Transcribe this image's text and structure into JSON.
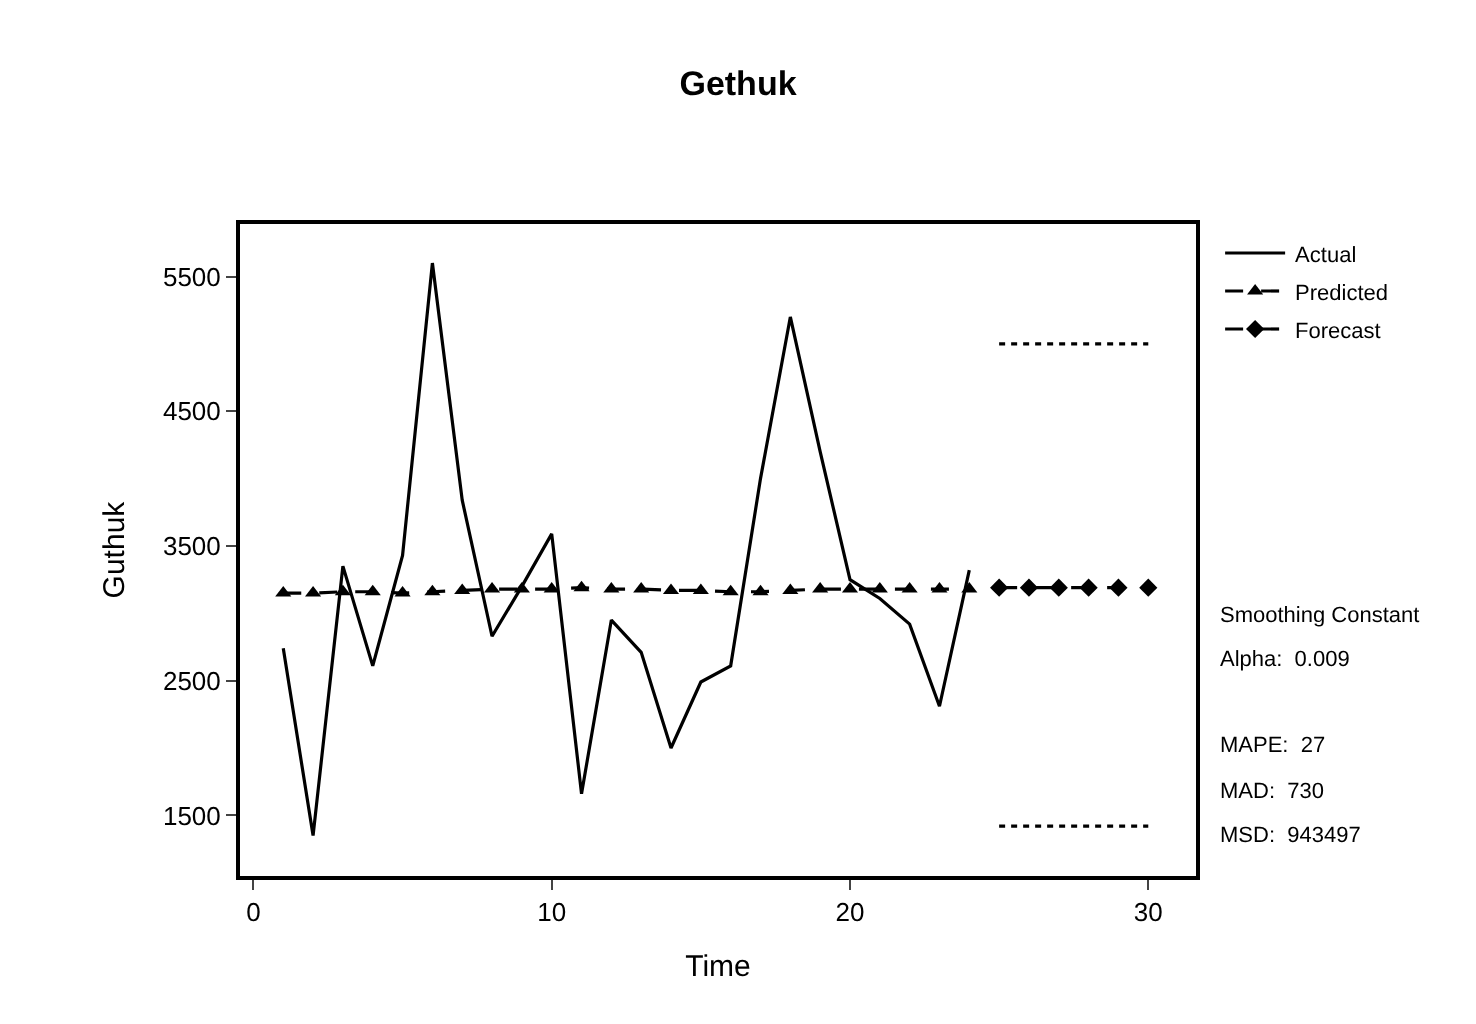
{
  "chart_data": {
    "type": "line",
    "title": "Gethuk",
    "xlabel": "Time",
    "ylabel": "Guthuk",
    "xlim": [
      -0.45,
      31.6
    ],
    "xticks": [
      0,
      10,
      20,
      30
    ],
    "ylim": [
      1050,
      5890
    ],
    "yticks": [
      1500,
      2500,
      3500,
      4500,
      5500
    ],
    "grid": false,
    "legend": "top right",
    "series": [
      {
        "name": "Actual",
        "color": "#000000",
        "line_style": "solid",
        "marker": "none",
        "x": [
          1,
          2,
          3,
          4,
          5,
          6,
          7,
          8,
          9,
          10,
          11,
          12,
          13,
          14,
          15,
          16,
          17,
          18,
          19,
          20,
          21,
          22,
          23,
          24
        ],
        "values": [
          2740,
          1350,
          3350,
          2610,
          3430,
          5600,
          3840,
          2830,
          3200,
          3590,
          1660,
          2950,
          2710,
          2000,
          2490,
          2610,
          4000,
          5200,
          4200,
          3250,
          3110,
          2920,
          2310,
          3320
        ]
      },
      {
        "name": "Predicted",
        "color": "#000000",
        "line_style": "dashed",
        "marker": "triangle",
        "x": [
          1,
          2,
          3,
          4,
          5,
          6,
          7,
          8,
          9,
          10,
          11,
          12,
          13,
          14,
          15,
          16,
          17,
          18,
          19,
          20,
          21,
          22,
          23,
          24
        ],
        "values": [
          3150,
          3150,
          3160,
          3160,
          3150,
          3160,
          3170,
          3180,
          3180,
          3180,
          3190,
          3180,
          3180,
          3170,
          3170,
          3160,
          3160,
          3170,
          3180,
          3180,
          3180,
          3180,
          3180,
          3180
        ]
      },
      {
        "name": "Forecast",
        "color": "#000000",
        "line_style": "dashed",
        "marker": "diamond",
        "x": [
          25,
          26,
          27,
          28,
          29,
          30
        ],
        "values": [
          3190,
          3190,
          3190,
          3190,
          3190,
          3190
        ]
      },
      {
        "color": "#000000",
        "line_style": "dotted",
        "marker": "none",
        "x": [
          25,
          26,
          27,
          28,
          29,
          30
        ],
        "values": [
          5000,
          5000,
          5000,
          5000,
          5000,
          5000
        ]
      },
      {
        "color": "#000000",
        "line_style": "dotted",
        "marker": "none",
        "x": [
          25,
          26,
          27,
          28,
          29,
          30
        ],
        "values": [
          1420,
          1420,
          1420,
          1420,
          1420,
          1420
        ]
      }
    ],
    "annotations": [
      "Smoothing Constant",
      "Alpha:  0.009",
      "MAPE:  27",
      "MAD:  730",
      "MSD:  943497"
    ]
  }
}
